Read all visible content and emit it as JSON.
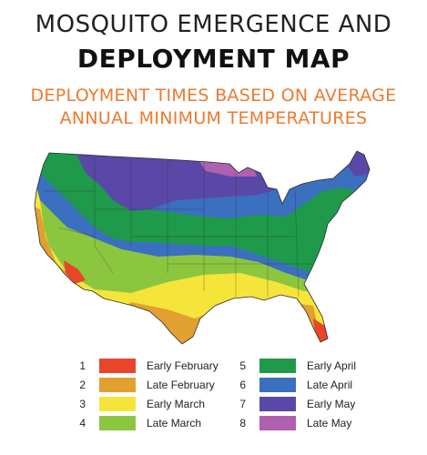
{
  "title": {
    "line1": "MOSQUITO EMERGENCE AND",
    "line2": "DEPLOYMENT MAP"
  },
  "subtitle": {
    "line1": "DEPLOYMENT TIMES BASED ON AVERAGE",
    "line2": "ANNUAL MINIMUM TEMPERATURES"
  },
  "colors": {
    "zone1": "#e8452a",
    "zone2": "#e2a030",
    "zone3": "#f5e53a",
    "zone4": "#8cc63f",
    "zone5": "#1f9a4a",
    "zone6": "#3b6fbf",
    "zone7": "#5a48a8",
    "zone8": "#b060b0",
    "accent": "#ec7a2e"
  },
  "legend": [
    {
      "num": "1",
      "label": "Early February",
      "color": "#e8452a"
    },
    {
      "num": "2",
      "label": "Late February",
      "color": "#e2a030"
    },
    {
      "num": "3",
      "label": "Early March",
      "color": "#f5e53a"
    },
    {
      "num": "4",
      "label": "Late March",
      "color": "#8cc63f"
    },
    {
      "num": "5",
      "label": "Early April",
      "color": "#1f9a4a"
    },
    {
      "num": "6",
      "label": "Late April",
      "color": "#3b6fbf"
    },
    {
      "num": "7",
      "label": "Early May",
      "color": "#5a48a8"
    },
    {
      "num": "8",
      "label": "Late May",
      "color": "#b060b0"
    }
  ]
}
